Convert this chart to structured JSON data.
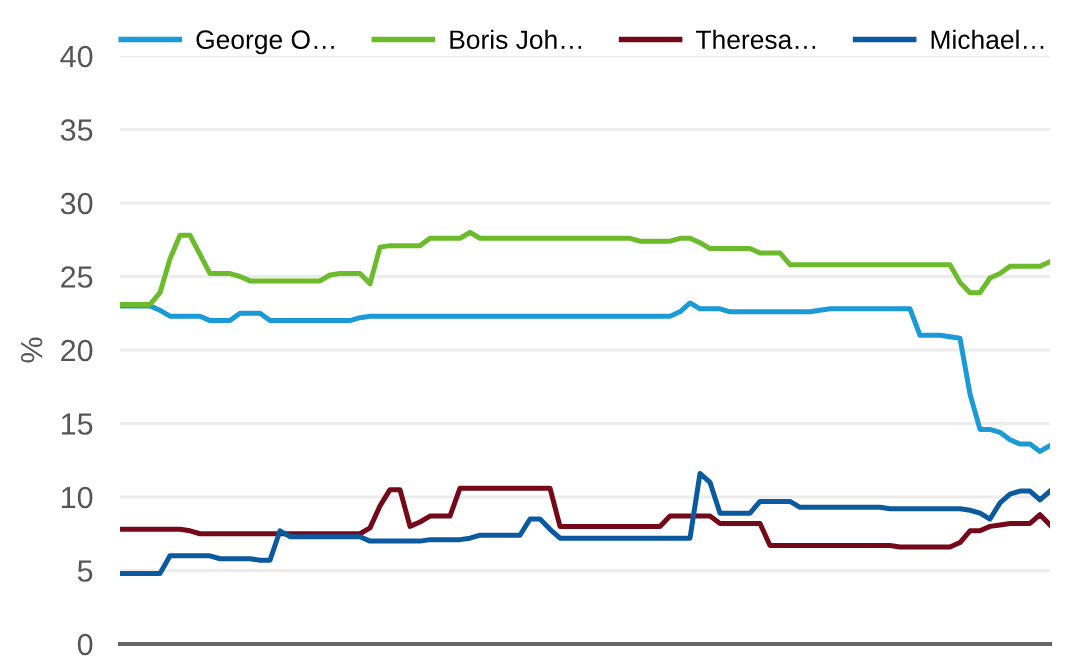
{
  "chart_data": {
    "type": "line",
    "ylabel": "%",
    "ylim": [
      0,
      40
    ],
    "yticks": [
      0,
      5,
      10,
      15,
      20,
      25,
      30,
      35,
      40
    ],
    "grid": "y",
    "legend": "top",
    "marker": "none",
    "line_style": "solid",
    "categories": [
      null,
      null,
      null,
      null,
      null,
      null,
      null,
      null,
      null,
      null,
      null,
      null,
      null,
      null,
      null,
      null,
      null,
      null,
      null,
      null,
      null,
      null,
      null,
      null,
      null,
      null,
      null,
      null,
      null,
      null,
      null,
      null,
      null,
      null,
      null,
      null,
      null,
      null,
      null,
      null,
      null,
      null,
      null,
      null,
      null,
      null,
      null,
      null,
      null,
      null,
      null,
      null,
      null,
      null,
      null,
      null,
      null,
      null,
      null,
      null,
      null,
      null,
      null,
      null,
      null,
      null,
      null,
      null,
      null,
      null,
      null,
      null,
      null,
      null,
      null,
      null,
      null,
      null,
      null,
      null,
      null,
      null,
      null,
      null,
      null,
      null,
      null,
      null,
      null,
      null,
      null,
      null,
      null,
      null
    ],
    "series": [
      {
        "name": "George O…",
        "color": "#1a9ad6",
        "values": [
          23,
          23,
          23,
          23,
          22.7,
          22.3,
          22.3,
          22.3,
          22.3,
          22,
          22,
          22,
          22.5,
          22.5,
          22.5,
          22,
          22,
          22,
          22,
          22,
          22,
          22,
          22,
          22,
          22.2,
          22.3,
          22.3,
          22.3,
          22.3,
          22.3,
          22.3,
          22.3,
          22.3,
          22.3,
          22.3,
          22.3,
          22.3,
          22.3,
          22.3,
          22.3,
          22.3,
          22.3,
          22.3,
          22.3,
          22.3,
          22.3,
          22.3,
          22.3,
          22.3,
          22.3,
          22.3,
          22.3,
          22.3,
          22.3,
          22.3,
          22.3,
          22.6,
          23.2,
          22.8,
          22.8,
          22.8,
          22.6,
          22.6,
          22.6,
          22.6,
          22.6,
          22.6,
          22.6,
          22.6,
          22.6,
          22.7,
          22.8,
          22.8,
          22.8,
          22.8,
          22.8,
          22.8,
          22.8,
          22.8,
          22.8,
          21,
          21,
          21,
          20.9,
          20.8,
          17,
          14.6,
          14.6,
          14.4,
          13.9,
          13.6,
          13.6,
          13.1,
          13.5
        ]
      },
      {
        "name": "Boris Joh…",
        "color": "#6cbb2d",
        "values": [
          23.1,
          23.1,
          23.1,
          23.1,
          23.9,
          26.2,
          27.8,
          27.8,
          26.5,
          25.2,
          25.2,
          25.2,
          25,
          24.7,
          24.7,
          24.7,
          24.7,
          24.7,
          24.7,
          24.7,
          24.7,
          25.1,
          25.2,
          25.2,
          25.2,
          24.5,
          27,
          27.1,
          27.1,
          27.1,
          27.1,
          27.6,
          27.6,
          27.6,
          27.6,
          28,
          27.6,
          27.6,
          27.6,
          27.6,
          27.6,
          27.6,
          27.6,
          27.6,
          27.6,
          27.6,
          27.6,
          27.6,
          27.6,
          27.6,
          27.6,
          27.6,
          27.4,
          27.4,
          27.4,
          27.4,
          27.6,
          27.6,
          27.3,
          26.9,
          26.9,
          26.9,
          26.9,
          26.9,
          26.6,
          26.6,
          26.6,
          25.8,
          25.8,
          25.8,
          25.8,
          25.8,
          25.8,
          25.8,
          25.8,
          25.8,
          25.8,
          25.8,
          25.8,
          25.8,
          25.8,
          25.8,
          25.8,
          25.8,
          24.6,
          23.9,
          23.9,
          24.9,
          25.2,
          25.7,
          25.7,
          25.7,
          25.7,
          26
        ]
      },
      {
        "name": "Theresa…",
        "color": "#74091a",
        "values": [
          7.8,
          7.8,
          7.8,
          7.8,
          7.8,
          7.8,
          7.8,
          7.7,
          7.5,
          7.5,
          7.5,
          7.5,
          7.5,
          7.5,
          7.5,
          7.5,
          7.5,
          7.5,
          7.5,
          7.5,
          7.5,
          7.5,
          7.5,
          7.5,
          7.5,
          7.9,
          9.4,
          10.5,
          10.5,
          8,
          8.3,
          8.7,
          8.7,
          8.7,
          10.6,
          10.6,
          10.6,
          10.6,
          10.6,
          10.6,
          10.6,
          10.6,
          10.6,
          10.6,
          8,
          8,
          8,
          8,
          8,
          8,
          8,
          8,
          8,
          8,
          8,
          8.7,
          8.7,
          8.7,
          8.7,
          8.7,
          8.2,
          8.2,
          8.2,
          8.2,
          8.2,
          6.7,
          6.7,
          6.7,
          6.7,
          6.7,
          6.7,
          6.7,
          6.7,
          6.7,
          6.7,
          6.7,
          6.7,
          6.7,
          6.6,
          6.6,
          6.6,
          6.6,
          6.6,
          6.6,
          6.9,
          7.7,
          7.7,
          8.0,
          8.1,
          8.2,
          8.2,
          8.2,
          8.8,
          8.1
        ]
      },
      {
        "name": "Michael…",
        "color": "#0b5aa0",
        "values": [
          4.8,
          4.8,
          4.8,
          4.8,
          4.8,
          6,
          6,
          6,
          6,
          6,
          5.8,
          5.8,
          5.8,
          5.8,
          5.7,
          5.7,
          7.7,
          7.3,
          7.3,
          7.3,
          7.3,
          7.3,
          7.3,
          7.3,
          7.3,
          7,
          7,
          7,
          7,
          7,
          7,
          7.1,
          7.1,
          7.1,
          7.1,
          7.2,
          7.4,
          7.4,
          7.4,
          7.4,
          7.4,
          8.5,
          8.5,
          7.8,
          7.2,
          7.2,
          7.2,
          7.2,
          7.2,
          7.2,
          7.2,
          7.2,
          7.2,
          7.2,
          7.2,
          7.2,
          7.2,
          7.2,
          11.6,
          11,
          8.9,
          8.9,
          8.9,
          8.9,
          9.7,
          9.7,
          9.7,
          9.7,
          9.3,
          9.3,
          9.3,
          9.3,
          9.3,
          9.3,
          9.3,
          9.3,
          9.3,
          9.2,
          9.2,
          9.2,
          9.2,
          9.2,
          9.2,
          9.2,
          9.2,
          9.1,
          8.9,
          8.5,
          9.6,
          10.2,
          10.4,
          10.4,
          9.8,
          10.4
        ]
      }
    ]
  }
}
